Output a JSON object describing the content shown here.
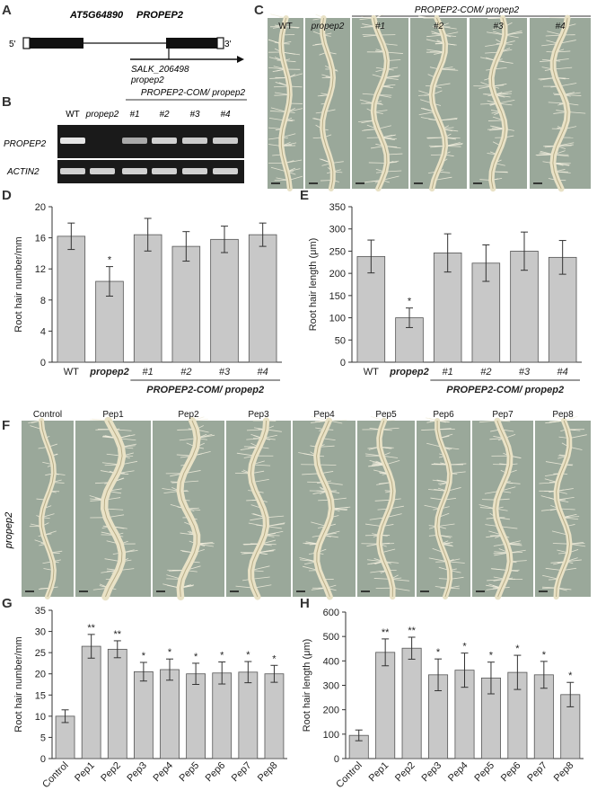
{
  "panel_a": {
    "letter": "A",
    "gene_id": "AT5G64890",
    "gene_name": "PROPEP2",
    "five_prime": "5'",
    "three_prime": "3'",
    "insertion_line": "SALK_206498",
    "insertion_mutant": "propep2"
  },
  "panel_b": {
    "letter": "B",
    "lanes": [
      "WT",
      "propep2",
      "#1",
      "#2",
      "#3",
      "#4"
    ],
    "group_label": "PROPEP2-COM/ propep2",
    "rows": [
      "PROPEP2",
      "ACTIN2"
    ]
  },
  "panel_c": {
    "letter": "C",
    "labels": [
      "WT",
      "propep2",
      "#1",
      "#2",
      "#3",
      "#4"
    ],
    "group_label": "PROPEP2-COM/ propep2"
  },
  "panel_f": {
    "letter": "F",
    "labels": [
      "Control",
      "Pep1",
      "Pep2",
      "Pep3",
      "Pep4",
      "Pep5",
      "Pep6",
      "Pep7",
      "Pep8"
    ],
    "row_label": "propep2"
  },
  "chart_data": [
    {
      "panel": "D",
      "type": "bar",
      "ylabel": "Root hair number/mm",
      "categories": [
        "WT",
        "propep2",
        "#1",
        "#2",
        "#3",
        "#4"
      ],
      "values": [
        16.2,
        10.4,
        16.4,
        14.9,
        15.8,
        16.4
      ],
      "errors": [
        1.7,
        1.9,
        2.1,
        1.9,
        1.7,
        1.5
      ],
      "significance": [
        "",
        "*",
        "",
        "",
        "",
        ""
      ],
      "ylim": [
        0,
        20
      ],
      "yticks": [
        0,
        4,
        8,
        12,
        16,
        20
      ],
      "group_label": "PROPEP2-COM/ propep2"
    },
    {
      "panel": "E",
      "type": "bar",
      "ylabel": "Root hair length (μm)",
      "categories": [
        "WT",
        "propep2",
        "#1",
        "#2",
        "#3",
        "#4"
      ],
      "values": [
        238,
        100,
        246,
        223,
        250,
        236
      ],
      "errors": [
        37,
        22,
        43,
        41,
        43,
        38
      ],
      "significance": [
        "",
        "*",
        "",
        "",
        "",
        ""
      ],
      "ylim": [
        0,
        350
      ],
      "yticks": [
        0,
        50,
        100,
        150,
        200,
        250,
        300,
        350
      ],
      "group_label": "PROPEP2-COM/ propep2"
    },
    {
      "panel": "G",
      "type": "bar",
      "ylabel": "Root hair number/mm",
      "categories": [
        "Control",
        "Pep1",
        "Pep2",
        "Pep3",
        "Pep4",
        "Pep5",
        "Pep6",
        "Pep7",
        "Pep8"
      ],
      "values": [
        10.0,
        26.5,
        25.8,
        20.5,
        21.0,
        20.0,
        20.2,
        20.4,
        20.0
      ],
      "errors": [
        1.5,
        2.8,
        2.0,
        2.2,
        2.5,
        2.5,
        2.6,
        2.5,
        2.0
      ],
      "significance": [
        "",
        "**",
        "**",
        "*",
        "*",
        "*",
        "*",
        "*",
        "*"
      ],
      "ylim": [
        0,
        35
      ],
      "yticks": [
        0,
        5,
        10,
        15,
        20,
        25,
        30,
        35
      ]
    },
    {
      "panel": "H",
      "type": "bar",
      "ylabel": "Root hair length (μm)",
      "categories": [
        "Control",
        "Pep1",
        "Pep2",
        "Pep3",
        "Pep4",
        "Pep5",
        "Pep6",
        "Pep7",
        "Pep8"
      ],
      "values": [
        95,
        435,
        452,
        343,
        362,
        330,
        353,
        343,
        262
      ],
      "errors": [
        22,
        55,
        45,
        65,
        70,
        65,
        70,
        55,
        50
      ],
      "significance": [
        "",
        "**",
        "**",
        "*",
        "*",
        "*",
        "*",
        "*",
        "*"
      ],
      "ylim": [
        0,
        600
      ],
      "yticks": [
        0,
        100,
        200,
        300,
        400,
        500,
        600
      ]
    }
  ],
  "colors": {
    "bar_fill": "#c8c8c8",
    "bar_stroke": "#555555",
    "gel_bg": "#1a1a1a",
    "band": "#e6e6e6",
    "micrograph_bg": "#9aa89a"
  }
}
